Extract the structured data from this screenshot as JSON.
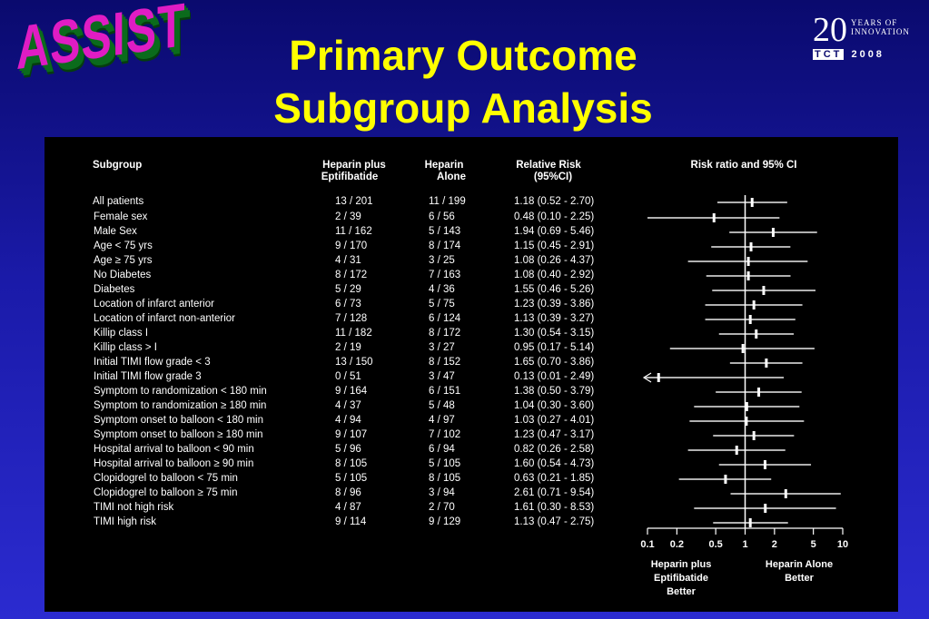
{
  "logo_text": "ASSIST",
  "title_line1": "Primary Outcome",
  "title_line2": "Subgroup Analysis",
  "tct_logo": {
    "number": "20",
    "sub1": "YEARS OF",
    "sub2": "INNOVATION",
    "brand": "TCT",
    "year": "2008"
  },
  "headers": {
    "subgroup": "Subgroup",
    "col1_line1": "Heparin plus",
    "col1_line2": "Eptifibatide",
    "col2_line1": "Heparin",
    "col2_line2": "Alone",
    "col3_line1": "Relative Risk",
    "col3_line2": "(95%CI)",
    "plot": "Risk ratio and 95% CI"
  },
  "footer": {
    "left_line1": "Heparin plus",
    "left_line2": "Eptifibatide",
    "left_line3": "Better",
    "right_line1": "Heparin Alone",
    "right_line2": "Better"
  },
  "chart_data": {
    "type": "forest",
    "title": "Risk ratio and 95% CI",
    "scale": "log",
    "xlim": [
      0.1,
      10
    ],
    "ticks": [
      0.1,
      0.2,
      0.5,
      1,
      2,
      5,
      10
    ],
    "tick_labels": [
      "0.1",
      "0.2",
      "0.5",
      "1",
      "2",
      "5",
      "10"
    ],
    "reference": 1,
    "rows": [
      {
        "subgroup": "All patients",
        "eptifibatide": "13 / 201",
        "alone": "11 / 199",
        "rr_text": "1.18 (0.52 - 2.70)",
        "rr": 1.18,
        "lo": 0.52,
        "hi": 2.7
      },
      {
        "subgroup": "Female sex",
        "eptifibatide": "2 / 39",
        "alone": "6 / 56",
        "rr_text": "0.48 (0.10 - 2.25)",
        "rr": 0.48,
        "lo": 0.1,
        "hi": 2.25
      },
      {
        "subgroup": "Male Sex",
        "eptifibatide": "11 / 162",
        "alone": "5 / 143",
        "rr_text": "1.94 (0.69 - 5.46)",
        "rr": 1.94,
        "lo": 0.69,
        "hi": 5.46
      },
      {
        "subgroup": "Age < 75 yrs",
        "eptifibatide": "9 / 170",
        "alone": "8 / 174",
        "rr_text": "1.15 (0.45 - 2.91)",
        "rr": 1.15,
        "lo": 0.45,
        "hi": 2.91
      },
      {
        "subgroup": "Age ≥ 75 yrs",
        "eptifibatide": "4 / 31",
        "alone": "3 / 25",
        "rr_text": "1.08 (0.26 - 4.37)",
        "rr": 1.08,
        "lo": 0.26,
        "hi": 4.37
      },
      {
        "subgroup": "No Diabetes",
        "eptifibatide": "8 / 172",
        "alone": "7 / 163",
        "rr_text": "1.08 (0.40 - 2.92)",
        "rr": 1.08,
        "lo": 0.4,
        "hi": 2.92
      },
      {
        "subgroup": "Diabetes",
        "eptifibatide": "5 / 29",
        "alone": "4 / 36",
        "rr_text": "1.55 (0.46 - 5.26)",
        "rr": 1.55,
        "lo": 0.46,
        "hi": 5.26
      },
      {
        "subgroup": "Location of infarct anterior",
        "eptifibatide": "6 / 73",
        "alone": "5 / 75",
        "rr_text": "1.23 (0.39 - 3.86)",
        "rr": 1.23,
        "lo": 0.39,
        "hi": 3.86
      },
      {
        "subgroup": "Location of infarct non-anterior",
        "eptifibatide": "7 / 128",
        "alone": "6 / 124",
        "rr_text": "1.13 (0.39 - 3.27)",
        "rr": 1.13,
        "lo": 0.39,
        "hi": 3.27
      },
      {
        "subgroup": "Killip class I",
        "eptifibatide": "11 / 182",
        "alone": "8 / 172",
        "rr_text": "1.30 (0.54 - 3.15)",
        "rr": 1.3,
        "lo": 0.54,
        "hi": 3.15
      },
      {
        "subgroup": "Killip class > I",
        "eptifibatide": "2 / 19",
        "alone": "3 / 27",
        "rr_text": "0.95 (0.17 - 5.14)",
        "rr": 0.95,
        "lo": 0.17,
        "hi": 5.14
      },
      {
        "subgroup": "Initial TIMI flow grade < 3",
        "eptifibatide": "13 / 150",
        "alone": "8 / 152",
        "rr_text": "1.65 (0.70 - 3.86)",
        "rr": 1.65,
        "lo": 0.7,
        "hi": 3.86
      },
      {
        "subgroup": "Initial TIMI flow grade 3",
        "eptifibatide": "0 / 51",
        "alone": "3 / 47",
        "rr_text": "0.13 (0.01 - 2.49)",
        "rr": 0.13,
        "lo": 0.01,
        "hi": 2.49
      },
      {
        "subgroup": "Symptom to randomization < 180 min",
        "eptifibatide": "9 / 164",
        "alone": "6 / 151",
        "rr_text": "1.38 (0.50 - 3.79)",
        "rr": 1.38,
        "lo": 0.5,
        "hi": 3.79
      },
      {
        "subgroup": "Symptom to randomization ≥ 180 min",
        "eptifibatide": "4 / 37",
        "alone": "5 / 48",
        "rr_text": "1.04 (0.30 - 3.60)",
        "rr": 1.04,
        "lo": 0.3,
        "hi": 3.6
      },
      {
        "subgroup": "Symptom onset to balloon < 180 min",
        "eptifibatide": "4 / 94",
        "alone": "4 / 97",
        "rr_text": "1.03 (0.27 - 4.01)",
        "rr": 1.03,
        "lo": 0.27,
        "hi": 4.01
      },
      {
        "subgroup": "Symptom onset to balloon ≥ 180 min",
        "eptifibatide": "9 / 107",
        "alone": "7 / 102",
        "rr_text": "1.23 (0.47 - 3.17)",
        "rr": 1.23,
        "lo": 0.47,
        "hi": 3.17
      },
      {
        "subgroup": "Hospital arrival to balloon < 90 min",
        "eptifibatide": "5 / 96",
        "alone": "6 / 94",
        "rr_text": "0.82 (0.26 - 2.58)",
        "rr": 0.82,
        "lo": 0.26,
        "hi": 2.58
      },
      {
        "subgroup": "Hospital arrival to balloon ≥ 90 min",
        "eptifibatide": "8 / 105",
        "alone": "5 / 105",
        "rr_text": "1.60 (0.54 - 4.73)",
        "rr": 1.6,
        "lo": 0.54,
        "hi": 4.73
      },
      {
        "subgroup": "Clopidogrel  to balloon < 75 min",
        "eptifibatide": "5 / 105",
        "alone": "8 / 105",
        "rr_text": "0.63 (0.21 - 1.85)",
        "rr": 0.63,
        "lo": 0.21,
        "hi": 1.85
      },
      {
        "subgroup": "Clopidogrel  to balloon ≥ 75 min",
        "eptifibatide": "8 / 96",
        "alone": "3 / 94",
        "rr_text": "2.61 (0.71 - 9.54)",
        "rr": 2.61,
        "lo": 0.71,
        "hi": 9.54
      },
      {
        "subgroup": "TIMI not high risk",
        "eptifibatide": "4 / 87",
        "alone": "2 / 70",
        "rr_text": "1.61 (0.30 - 8.53)",
        "rr": 1.61,
        "lo": 0.3,
        "hi": 8.53
      },
      {
        "subgroup": "TIMI high risk",
        "eptifibatide": "9 / 114",
        "alone": "9 / 129",
        "rr_text": "1.13 (0.47 - 2.75)",
        "rr": 1.13,
        "lo": 0.47,
        "hi": 2.75
      }
    ]
  },
  "colors": {
    "title": "#ffff00",
    "panel": "#000000",
    "ci_line": "#b0b0b0",
    "text": "#ffffff",
    "logo": "#e01cc4"
  }
}
